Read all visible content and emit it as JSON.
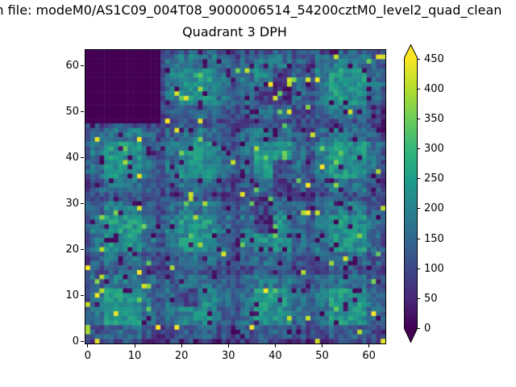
{
  "figure": {
    "suptitle": "m file: modeM0/AS1C09_004T08_9000006514_54200cztM0_level2_quad_clean",
    "title": "Quadrant 3 DPH",
    "background_color": "#ffffff",
    "text_color": "#000000"
  },
  "chart_data": {
    "type": "heatmap",
    "title": "Quadrant 3 DPH",
    "xlabel": "",
    "ylabel": "",
    "grid_size": 64,
    "x_range": [
      -0.5,
      63.5
    ],
    "y_range": [
      -0.5,
      63.5
    ],
    "xticks": [
      0,
      10,
      20,
      30,
      40,
      50,
      60
    ],
    "yticks": [
      0,
      10,
      20,
      30,
      40,
      50,
      60
    ],
    "grid": false,
    "colormap": "viridis",
    "colormap_stops": [
      {
        "t": 0.0,
        "c": "#440154"
      },
      {
        "t": 0.111,
        "c": "#482878"
      },
      {
        "t": 0.222,
        "c": "#3e4989"
      },
      {
        "t": 0.333,
        "c": "#31688e"
      },
      {
        "t": 0.444,
        "c": "#26828e"
      },
      {
        "t": 0.556,
        "c": "#1f9e89"
      },
      {
        "t": 0.667,
        "c": "#35b779"
      },
      {
        "t": 0.778,
        "c": "#6ece58"
      },
      {
        "t": 0.889,
        "c": "#b5de2b"
      },
      {
        "t": 1.0,
        "c": "#fde725"
      }
    ],
    "vmin": 0,
    "vmax": 453,
    "colorbar": {
      "ticks": [
        0,
        50,
        100,
        150,
        200,
        250,
        300,
        350,
        400,
        450
      ],
      "extend": "both",
      "position": "right"
    },
    "masked_block": {
      "x_min": 0,
      "x_max": 15,
      "y_min": 48,
      "y_max": 63,
      "value": 0
    },
    "detector_modules": {
      "per_side": 4,
      "module_pixels": 16
    },
    "base_grid_16x16": [
      [
        0,
        0,
        0,
        0,
        150,
        180,
        175,
        140,
        145,
        170,
        165,
        135,
        150,
        185,
        180,
        145
      ],
      [
        0,
        0,
        0,
        0,
        180,
        235,
        230,
        170,
        165,
        200,
        90,
        150,
        180,
        240,
        235,
        170
      ],
      [
        0,
        0,
        0,
        0,
        175,
        230,
        225,
        165,
        160,
        90,
        60,
        145,
        175,
        235,
        230,
        165
      ],
      [
        0,
        0,
        0,
        0,
        135,
        165,
        160,
        125,
        130,
        150,
        140,
        115,
        135,
        170,
        165,
        130
      ],
      [
        145,
        180,
        175,
        140,
        145,
        175,
        170,
        135,
        150,
        180,
        175,
        140,
        145,
        180,
        175,
        140
      ],
      [
        175,
        240,
        230,
        165,
        170,
        225,
        220,
        160,
        175,
        235,
        225,
        165,
        180,
        240,
        230,
        170
      ],
      [
        170,
        235,
        225,
        160,
        165,
        220,
        215,
        155,
        170,
        230,
        95,
        160,
        175,
        235,
        225,
        165
      ],
      [
        130,
        170,
        160,
        120,
        125,
        160,
        155,
        115,
        130,
        165,
        90,
        120,
        135,
        170,
        165,
        125
      ],
      [
        150,
        185,
        180,
        145,
        145,
        180,
        175,
        140,
        145,
        90,
        170,
        135,
        150,
        185,
        180,
        145
      ],
      [
        185,
        245,
        240,
        175,
        175,
        235,
        230,
        165,
        165,
        75,
        220,
        155,
        180,
        240,
        235,
        170
      ],
      [
        180,
        240,
        235,
        170,
        170,
        230,
        225,
        160,
        170,
        225,
        220,
        160,
        175,
        235,
        230,
        165
      ],
      [
        135,
        175,
        170,
        130,
        130,
        165,
        160,
        120,
        125,
        160,
        155,
        115,
        130,
        170,
        165,
        125
      ],
      [
        150,
        185,
        180,
        145,
        140,
        170,
        165,
        135,
        145,
        175,
        170,
        140,
        145,
        175,
        170,
        140
      ],
      [
        180,
        240,
        235,
        170,
        165,
        100,
        215,
        155,
        175,
        240,
        230,
        165,
        175,
        240,
        230,
        165
      ],
      [
        175,
        235,
        230,
        165,
        160,
        210,
        205,
        150,
        170,
        235,
        225,
        160,
        170,
        235,
        225,
        160
      ],
      [
        120,
        150,
        145,
        110,
        110,
        140,
        135,
        105,
        115,
        145,
        140,
        110,
        115,
        145,
        140,
        110
      ]
    ],
    "generator": {
      "seed": 7,
      "noise_amplitude": 55,
      "dead_pixel_fraction": 0.06,
      "dead_value_max": 30,
      "hot_pixel_fraction": 0.025,
      "hot_value_min": 330,
      "hot_value_range": 130,
      "module_edge_factor": 0.72
    }
  }
}
